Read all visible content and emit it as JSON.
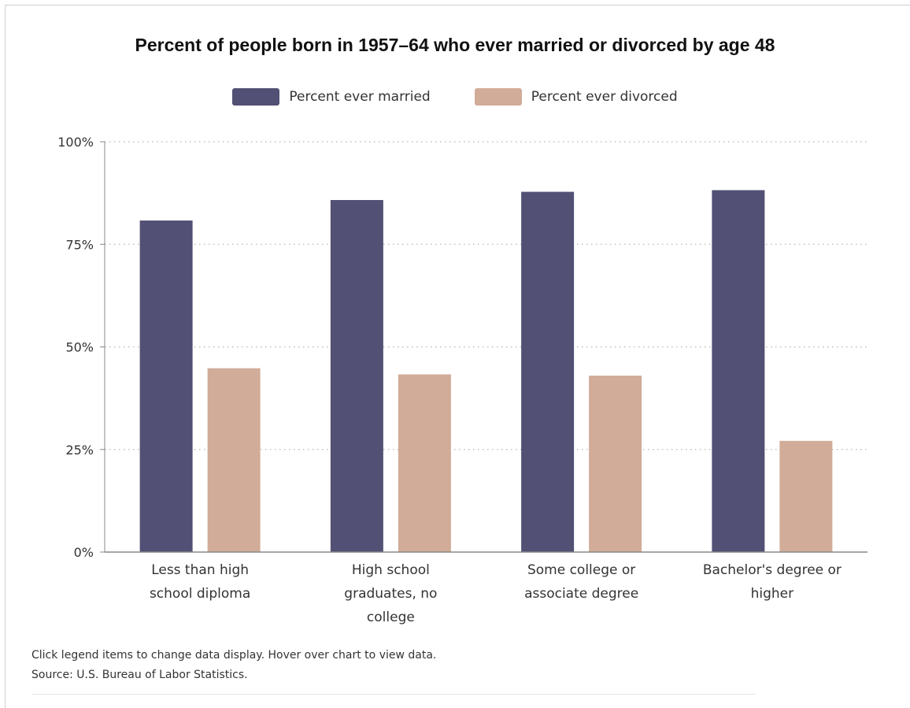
{
  "chart_data": {
    "type": "bar",
    "title": "Percent of people born in 1957–64 who ever married or divorced by age 48",
    "categories": [
      [
        "Less than high",
        "school diploma"
      ],
      [
        "High school",
        "graduates, no",
        "college"
      ],
      [
        "Some college or",
        "associate degree"
      ],
      [
        "Bachelor's degree or",
        "higher"
      ]
    ],
    "series": [
      {
        "name": "Percent ever married",
        "color": "#525074",
        "values": [
          80.8,
          85.8,
          87.8,
          88.2
        ]
      },
      {
        "name": "Percent ever divorced",
        "color": "#d1ac98",
        "values": [
          44.8,
          43.3,
          43.0,
          27.1
        ]
      }
    ],
    "y_ticks": [
      {
        "value": 0,
        "label": "0%"
      },
      {
        "value": 25,
        "label": "25%"
      },
      {
        "value": 50,
        "label": "50%"
      },
      {
        "value": 75,
        "label": "75%"
      },
      {
        "value": 100,
        "label": "100%"
      }
    ],
    "ylim": [
      0,
      100
    ],
    "grid": "horizontal dotted",
    "legend_position": "top-center"
  },
  "notes": {
    "instruction": "Click legend items to change data display. Hover over chart to view data.",
    "source": "Source: U.S. Bureau of Labor Statistics."
  }
}
